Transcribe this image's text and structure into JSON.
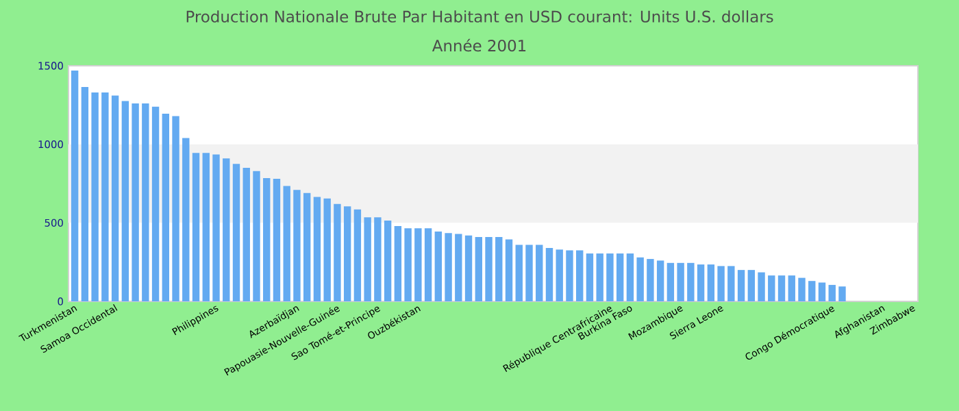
{
  "chart_data": {
    "type": "bar",
    "title": "Production Nationale Brute Par Habitant en USD courant: Units U.S. dollars",
    "subtitle": "Année 2001",
    "categories": [
      "Turkmenistan",
      null,
      null,
      null,
      "Samoa Occidental",
      null,
      null,
      null,
      null,
      null,
      null,
      null,
      null,
      null,
      "Philippines",
      null,
      null,
      null,
      null,
      null,
      null,
      null,
      "Azerbaïdjan",
      null,
      null,
      null,
      "Papouasie-Nouvelle-Guinée",
      null,
      null,
      null,
      "Sao Tomé-et-Principe",
      null,
      null,
      null,
      "Ouzbékistan",
      null,
      null,
      null,
      null,
      null,
      null,
      null,
      null,
      null,
      null,
      null,
      null,
      null,
      null,
      null,
      null,
      null,
      null,
      "République Centrafricaine",
      null,
      "Burkina Faso",
      null,
      null,
      null,
      null,
      "Mozambique",
      null,
      null,
      null,
      "Sierra Leone",
      null,
      null,
      null,
      null,
      null,
      null,
      null,
      null,
      null,
      null,
      "Congo Démocratique",
      null,
      null,
      null,
      null,
      "Afghanistan",
      null,
      null,
      "Zimbabwe"
    ],
    "values": [
      1470,
      1365,
      1330,
      1330,
      1310,
      1275,
      1260,
      1260,
      1240,
      1195,
      1180,
      1040,
      945,
      945,
      935,
      910,
      875,
      850,
      830,
      785,
      780,
      735,
      710,
      690,
      665,
      655,
      620,
      605,
      585,
      535,
      535,
      515,
      480,
      465,
      465,
      465,
      445,
      435,
      430,
      420,
      410,
      410,
      410,
      395,
      360,
      360,
      360,
      340,
      330,
      325,
      325,
      305,
      305,
      305,
      305,
      305,
      280,
      270,
      260,
      245,
      245,
      245,
      235,
      235,
      225,
      225,
      200,
      200,
      185,
      165,
      165,
      165,
      150,
      130,
      120,
      105,
      95,
      null,
      null,
      null,
      null,
      null,
      null,
      null
    ],
    "color": "#63aaf1",
    "ylim": [
      0,
      1500
    ],
    "yticks": [
      0,
      500,
      1000,
      1500
    ],
    "bands": [
      {
        "axis": "y",
        "from": 500,
        "to": 1000,
        "color": "#f2f2f2"
      }
    ]
  }
}
